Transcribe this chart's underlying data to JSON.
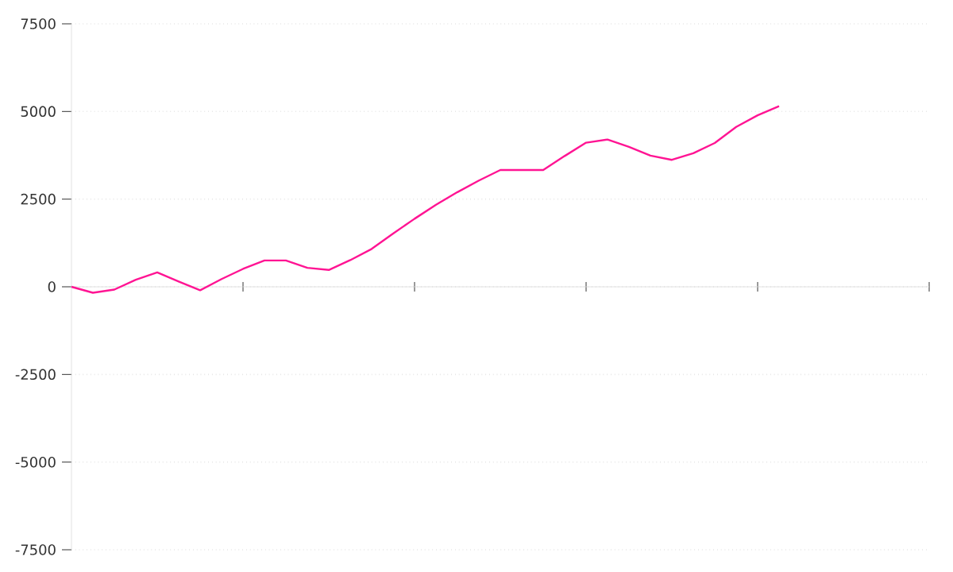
{
  "chart_data": {
    "type": "line",
    "categories": [
      null,
      null,
      null,
      null,
      null,
      null,
      null,
      null,
      null,
      null,
      null,
      null,
      null,
      null,
      null,
      null,
      null,
      null,
      null,
      null,
      null,
      null,
      null,
      null,
      null,
      null,
      null,
      null,
      null,
      null,
      null,
      null,
      null,
      null,
      null,
      null,
      null,
      null,
      null,
      null,
      null
    ],
    "series": [
      {
        "color": "#ff1493",
        "values": [
          0,
          -170,
          -80,
          200,
          410,
          150,
          -100,
          220,
          510,
          750,
          750,
          540,
          480,
          760,
          1080,
          1520,
          1940,
          2340,
          2700,
          3030,
          3330,
          3330,
          3330,
          3730,
          4110,
          4200,
          3990,
          3740,
          3620,
          3810,
          4100,
          4560,
          4890,
          5150,
          null,
          null,
          null,
          null,
          null,
          null,
          null
        ]
      }
    ],
    "ylim": [
      -7500,
      7500
    ],
    "yticks": [
      -7500,
      -5000,
      -2500,
      0,
      2500,
      5000,
      7500
    ],
    "grid": "y",
    "tick_labels": "y",
    "marker": "none",
    "line_style": "solid"
  }
}
